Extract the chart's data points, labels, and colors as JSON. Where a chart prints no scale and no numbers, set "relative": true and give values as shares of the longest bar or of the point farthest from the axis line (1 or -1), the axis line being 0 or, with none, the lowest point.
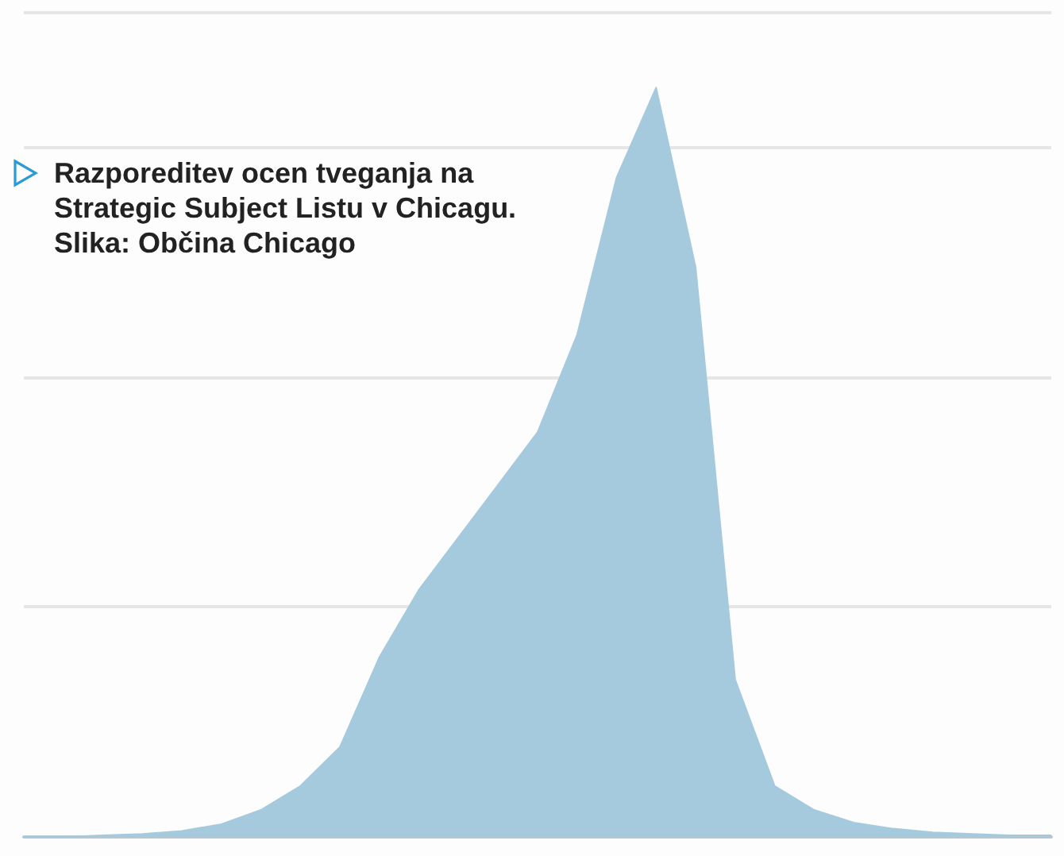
{
  "chart_data": {
    "type": "area",
    "relative": true,
    "grid": "y",
    "color": "#a6cadd",
    "categories": [
      null,
      null,
      null,
      null,
      null,
      null,
      null,
      null,
      null,
      null,
      null,
      null,
      null,
      null,
      null,
      null,
      null,
      null,
      null,
      null,
      null,
      null,
      null,
      null,
      null,
      null,
      null
    ],
    "values": [
      0,
      0,
      0.002,
      0.004,
      0.008,
      0.017,
      0.036,
      0.068,
      0.12,
      0.24,
      0.33,
      0.4,
      0.47,
      0.54,
      0.67,
      0.88,
      1,
      0.76,
      0.21,
      0.068,
      0.036,
      0.019,
      0.011,
      0.006,
      0.004,
      0.002,
      0.002
    ],
    "annotations": [
      "Razporeditev ocen tveganja na Strategic Subject Listu v Chicagu. Slika: Občina Chicago"
    ]
  }
}
